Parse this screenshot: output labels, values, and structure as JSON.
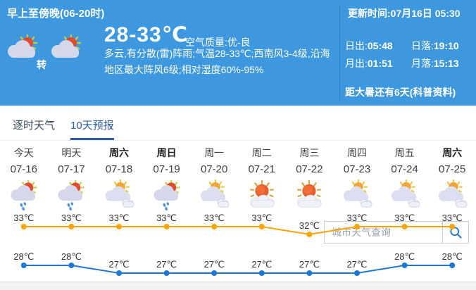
{
  "header": {
    "period_title": "早上至傍晚(06-20时)",
    "transition_label": "转",
    "temp_range": "28-33℃",
    "air_quality": "空气质量:优-良",
    "description": "多云,有分散(雷)阵雨;气温28-33℃;西南风3-4级,沿海地区最大阵风6级;相对湿度60%-95%",
    "update_time": "更新时间:07月16日 05:30",
    "sunrise_label": "日出:",
    "sunrise_value": "05:48",
    "sunset_label": "日落:",
    "sunset_value": "19:10",
    "moonrise_label": "月出:",
    "moonrise_value": "01:51",
    "moonset_label": "月落:",
    "moonset_value": "15:13",
    "countdown_text": "距大暑还有6天",
    "countdown_link": "(科普资料)",
    "bg_color": "#3D98E0",
    "weather_icon": "shower"
  },
  "tabs": [
    {
      "label": "逐时天气",
      "active": false
    },
    {
      "label": "10天预报",
      "active": true
    }
  ],
  "search": {
    "placeholder": "城市天气查询",
    "icon": "magnifier-icon",
    "icon_color": "#2F7BC8"
  },
  "forecast": {
    "days": [
      {
        "day": "今天",
        "date": "07-16",
        "icon": "shower",
        "weekend": false
      },
      {
        "day": "明天",
        "date": "07-17",
        "icon": "shower",
        "weekend": false
      },
      {
        "day": "周六",
        "date": "07-18",
        "icon": "cloudy",
        "weekend": true
      },
      {
        "day": "周日",
        "date": "07-19",
        "icon": "shower",
        "weekend": true
      },
      {
        "day": "周一",
        "date": "07-20",
        "icon": "cloudy",
        "weekend": false
      },
      {
        "day": "周二",
        "date": "07-21",
        "icon": "mostly_sunny",
        "weekend": false
      },
      {
        "day": "周三",
        "date": "07-22",
        "icon": "mostly_sunny",
        "weekend": false
      },
      {
        "day": "周四",
        "date": "07-23",
        "icon": "cloudy",
        "weekend": false
      },
      {
        "day": "周五",
        "date": "07-24",
        "icon": "cloudy",
        "weekend": false
      },
      {
        "day": "周六",
        "date": "07-25",
        "icon": "cloudy",
        "weekend": true
      }
    ]
  },
  "chart_data": {
    "type": "line",
    "categories": [
      "07-16",
      "07-17",
      "07-18",
      "07-19",
      "07-20",
      "07-21",
      "07-22",
      "07-23",
      "07-24",
      "07-25"
    ],
    "series": [
      {
        "name": "high",
        "color": "#FFA400",
        "values": [
          33,
          33,
          33,
          33,
          33,
          33,
          32,
          33,
          33,
          33
        ]
      },
      {
        "name": "low",
        "color": "#1C76D5",
        "values": [
          28,
          28,
          27,
          27,
          27,
          27,
          27,
          27,
          28,
          28
        ]
      }
    ],
    "unit": "℃",
    "ylim": [
      26,
      34
    ],
    "grid": false,
    "legend": "none"
  }
}
